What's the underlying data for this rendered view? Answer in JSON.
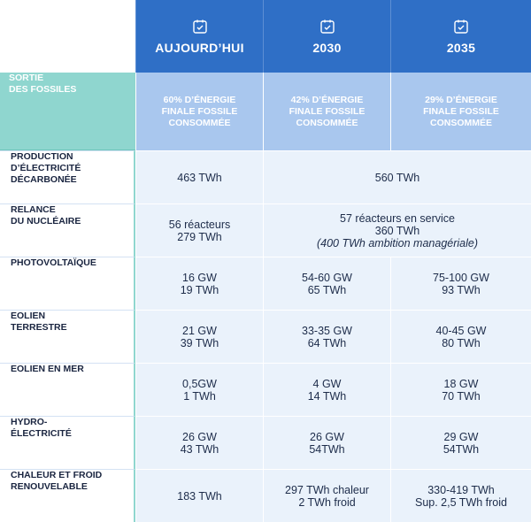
{
  "columns": [
    {
      "year": "AUJOURD’HUI",
      "icon": "calendar-check-icon"
    },
    {
      "year": "2030",
      "icon": "calendar-check-icon"
    },
    {
      "year": "2035",
      "icon": "calendar-check-icon"
    }
  ],
  "sortie": {
    "line1": "SORTIE",
    "line2": "DES FOSSILES"
  },
  "fossil_share": [
    {
      "line1": "60% D’ÉNERGIE",
      "line2": "FINALE FOSSILE",
      "line3": "CONSOMMÉE"
    },
    {
      "line1": "42% D’ÉNERGIE",
      "line2": "FINALE FOSSILE",
      "line3": "CONSOMMÉE"
    },
    {
      "line1": "29% D’ÉNERGIE",
      "line2": "FINALE FOSSILE",
      "line3": "CONSOMMÉE"
    }
  ],
  "rows": {
    "production": {
      "label": [
        "PRODUCTION",
        "D’ÉLECTRICITÉ",
        "DÉCARBONÉE"
      ],
      "today": "463 TWh",
      "future": "560 TWh"
    },
    "nucleaire": {
      "label": [
        "RELANCE",
        "DU NUCLÉAIRE"
      ],
      "today": [
        "56 réacteurs",
        "279 TWh"
      ],
      "future": [
        "57 réacteurs en service",
        "360 TWh",
        "(400 TWh ambition managériale)"
      ]
    },
    "photovoltaique": {
      "label": [
        "PHOTOVOLTAÏQUE"
      ],
      "today": [
        "16 GW",
        "19 TWh"
      ],
      "y2030": [
        "54-60 GW",
        "65 TWh"
      ],
      "y2035": [
        "75-100 GW",
        "93 TWh"
      ]
    },
    "eolien_terrestre": {
      "label": [
        "EOLIEN",
        "TERRESTRE"
      ],
      "today": [
        "21 GW",
        "39 TWh"
      ],
      "y2030": [
        "33-35 GW",
        "64 TWh"
      ],
      "y2035": [
        "40-45 GW",
        "80 TWh"
      ]
    },
    "eolien_mer": {
      "label": [
        "EOLIEN EN MER"
      ],
      "today": [
        "0,5GW",
        "1 TWh"
      ],
      "y2030": [
        "4 GW",
        "14 TWh"
      ],
      "y2035": [
        "18 GW",
        "70 TWh"
      ]
    },
    "hydro": {
      "label": [
        "HYDRO-",
        "ÉLECTRICITÉ"
      ],
      "today": [
        "26 GW",
        "43 TWh"
      ],
      "y2030": [
        "26 GW",
        "54TWh"
      ],
      "y2035": [
        "29 GW",
        "54TWh"
      ]
    },
    "chaleur": {
      "label": [
        "CHALEUR ET FROID",
        "RENOUVELABLE"
      ],
      "today": "183 TWh",
      "y2030": [
        "297 TWh chaleur",
        "2 TWh froid"
      ],
      "y2035": [
        "330-419 TWh",
        "Sup. 2,5 TWh froid"
      ]
    }
  }
}
